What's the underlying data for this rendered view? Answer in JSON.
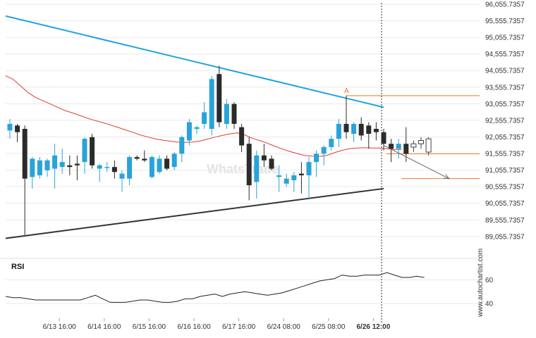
{
  "colors": {
    "bull": "#29a3d9",
    "bear": "#2b2b2b",
    "ma": "#e03c31",
    "resistance": "#1ea4e0",
    "support": "#333333",
    "level": "#e8772a",
    "rsi": "#222222",
    "forecast": "#666666",
    "grid": "#e9e9e9"
  },
  "watermark": {
    "side": "www.autochartist.com",
    "center": "WhatsTrade"
  },
  "rsi_panel": {
    "title": "RSI"
  },
  "pattern_marker": "A",
  "chart_data": {
    "type": "candlestick",
    "y_axis": {
      "range": [
        88755.7357,
        96055.7357
      ],
      "ticks": [
        "96,055.7357",
        "95,555.7357",
        "95,055.7357",
        "94,555.7357",
        "94,055.7357",
        "93,555.7357",
        "93,055.7357",
        "92,555.7357",
        "92,055.7357",
        "91,555.7357",
        "91,055.7357",
        "90,555.7357",
        "90,055.7357",
        "89,555.7357",
        "89,055.7357"
      ]
    },
    "x_axis": {
      "ticks": [
        {
          "label": "6/13 16:00",
          "index": 7
        },
        {
          "label": "6/14 16:00",
          "index": 13
        },
        {
          "label": "6/15 16:00",
          "index": 19
        },
        {
          "label": "6/16 16:00",
          "index": 25
        },
        {
          "label": "6/17 16:00",
          "index": 31
        },
        {
          "label": "6/24 08:00",
          "index": 37
        },
        {
          "label": "6/25 08:00",
          "index": 43
        },
        {
          "label": "6/26 12:00",
          "index": 49,
          "bold": true
        }
      ]
    },
    "candles": [
      {
        "o": 92250,
        "h": 92600,
        "l": 92000,
        "c": 92450
      },
      {
        "o": 92400,
        "h": 92450,
        "l": 91900,
        "c": 92200
      },
      {
        "o": 92300,
        "h": 92400,
        "l": 89100,
        "c": 90800
      },
      {
        "o": 90850,
        "h": 91450,
        "l": 90500,
        "c": 91400
      },
      {
        "o": 90900,
        "h": 91450,
        "l": 90800,
        "c": 91350
      },
      {
        "o": 91050,
        "h": 91400,
        "l": 90850,
        "c": 91350
      },
      {
        "o": 91100,
        "h": 91850,
        "l": 90500,
        "c": 91500
      },
      {
        "o": 91150,
        "h": 91700,
        "l": 90950,
        "c": 91300
      },
      {
        "o": 91200,
        "h": 91500,
        "l": 90900,
        "c": 91150
      },
      {
        "o": 91250,
        "h": 91500,
        "l": 90750,
        "c": 91200
      },
      {
        "o": 91300,
        "h": 92050,
        "l": 90950,
        "c": 92000
      },
      {
        "o": 92050,
        "h": 92150,
        "l": 91100,
        "c": 91200
      },
      {
        "o": 91100,
        "h": 91250,
        "l": 90700,
        "c": 91200
      },
      {
        "o": 91150,
        "h": 91300,
        "l": 91000,
        "c": 91150
      },
      {
        "o": 91150,
        "h": 91350,
        "l": 90800,
        "c": 91000
      },
      {
        "o": 90800,
        "h": 91050,
        "l": 90400,
        "c": 90950
      },
      {
        "o": 90800,
        "h": 91500,
        "l": 90600,
        "c": 91450
      },
      {
        "o": 91450,
        "h": 91500,
        "l": 91350,
        "c": 91400
      },
      {
        "o": 91400,
        "h": 91650,
        "l": 91300,
        "c": 91350
      },
      {
        "o": 90850,
        "h": 91500,
        "l": 90800,
        "c": 91450
      },
      {
        "o": 91000,
        "h": 91500,
        "l": 90950,
        "c": 91400
      },
      {
        "o": 91400,
        "h": 91500,
        "l": 91050,
        "c": 91100
      },
      {
        "o": 91150,
        "h": 91600,
        "l": 91050,
        "c": 91550
      },
      {
        "o": 91550,
        "h": 92100,
        "l": 91300,
        "c": 92050
      },
      {
        "o": 91950,
        "h": 92600,
        "l": 91800,
        "c": 92500
      },
      {
        "o": 92300,
        "h": 92400,
        "l": 92150,
        "c": 92350
      },
      {
        "o": 92450,
        "h": 93100,
        "l": 92300,
        "c": 92800
      },
      {
        "o": 92300,
        "h": 93900,
        "l": 92100,
        "c": 93800
      },
      {
        "o": 93950,
        "h": 94200,
        "l": 92350,
        "c": 92500
      },
      {
        "o": 92450,
        "h": 93200,
        "l": 92300,
        "c": 93050
      },
      {
        "o": 93050,
        "h": 93100,
        "l": 92300,
        "c": 92450
      },
      {
        "o": 92350,
        "h": 92450,
        "l": 91600,
        "c": 91800
      },
      {
        "o": 91850,
        "h": 92050,
        "l": 90150,
        "c": 90600
      },
      {
        "o": 90700,
        "h": 91650,
        "l": 90200,
        "c": 91500
      },
      {
        "o": 91500,
        "h": 91850,
        "l": 91150,
        "c": 91350
      },
      {
        "o": 91400,
        "h": 91500,
        "l": 91050,
        "c": 91100
      },
      {
        "o": 90850,
        "h": 91200,
        "l": 90400,
        "c": 90900
      },
      {
        "o": 90650,
        "h": 90950,
        "l": 90550,
        "c": 90800
      },
      {
        "o": 90750,
        "h": 91000,
        "l": 90400,
        "c": 90900
      },
      {
        "o": 90950,
        "h": 91300,
        "l": 90350,
        "c": 90900
      },
      {
        "o": 90900,
        "h": 91450,
        "l": 90200,
        "c": 91300
      },
      {
        "o": 91300,
        "h": 91650,
        "l": 90850,
        "c": 91550
      },
      {
        "o": 91550,
        "h": 91800,
        "l": 91200,
        "c": 91750
      },
      {
        "o": 91750,
        "h": 92100,
        "l": 91650,
        "c": 92000
      },
      {
        "o": 92000,
        "h": 92600,
        "l": 91750,
        "c": 92450
      },
      {
        "o": 92450,
        "h": 93300,
        "l": 92000,
        "c": 92200
      },
      {
        "o": 92150,
        "h": 92500,
        "l": 91900,
        "c": 92450
      },
      {
        "o": 92450,
        "h": 92650,
        "l": 91950,
        "c": 92100
      },
      {
        "o": 92400,
        "h": 92500,
        "l": 91700,
        "c": 92150
      },
      {
        "o": 92300,
        "h": 92500,
        "l": 91950,
        "c": 92200
      },
      {
        "o": 92200,
        "h": 92300,
        "l": 91650,
        "c": 91850
      },
      {
        "o": 91850,
        "h": 92000,
        "l": 91300,
        "c": 91700
      },
      {
        "o": 91700,
        "h": 92000,
        "l": 91400,
        "c": 91850
      },
      {
        "o": 91850,
        "h": 92350,
        "l": 91300,
        "c": 91550
      }
    ],
    "forecast_candles": [
      {
        "o": 91750,
        "h": 91950,
        "l": 91600,
        "c": 91850
      },
      {
        "o": 91850,
        "h": 92050,
        "l": 91700,
        "c": 91950
      },
      {
        "o": 91600,
        "h": 92050,
        "l": 91500,
        "c": 92000
      }
    ],
    "moving_average": [
      93900,
      93800,
      93600,
      93400,
      93250,
      93150,
      93050,
      92950,
      92850,
      92780,
      92700,
      92620,
      92550,
      92490,
      92420,
      92350,
      92270,
      92200,
      92120,
      92060,
      92000,
      91960,
      91930,
      91900,
      91890,
      91900,
      91930,
      91990,
      92050,
      92100,
      92150,
      92180,
      92120,
      92020,
      91950,
      91870,
      91780,
      91700,
      91620,
      91560,
      91500,
      91480,
      91470,
      91500,
      91580,
      91650,
      91700,
      91720,
      91730,
      91720,
      91720,
      91700,
      91680,
      91680
    ],
    "resistance_line": [
      {
        "i": 0,
        "v": 95700
      },
      {
        "i": 50,
        "v": 92950
      }
    ],
    "support_line": [
      {
        "i": 0,
        "v": 89000
      },
      {
        "i": 50,
        "v": 90500
      }
    ],
    "pattern_level": {
      "i_start": 45,
      "i_end": 60,
      "v": 93300
    },
    "forecast_levels": [
      {
        "i_start": 50,
        "i_end": 60,
        "v": 91550
      },
      {
        "i_start": 52,
        "i_end": 60,
        "v": 90800
      }
    ],
    "forecast_arrow": {
      "from": {
        "i": 50,
        "v": 91800
      },
      "to": {
        "i": 58,
        "v": 90800
      }
    },
    "current_time_index": 50,
    "rsi": {
      "ticks": [
        60,
        40
      ],
      "range": [
        30,
        75
      ],
      "values": [
        46,
        45,
        45,
        44,
        43,
        43,
        43,
        43,
        43,
        43,
        43,
        45,
        47,
        44,
        41,
        41,
        41,
        42,
        43,
        43,
        42,
        41,
        41,
        42,
        44,
        44,
        46,
        47,
        48,
        46,
        48,
        49,
        50,
        49,
        48,
        47,
        48,
        49,
        51,
        53,
        55,
        57,
        59,
        60,
        61,
        64,
        63,
        63,
        64,
        64,
        64,
        66,
        64,
        62,
        62,
        63,
        62
      ]
    }
  }
}
